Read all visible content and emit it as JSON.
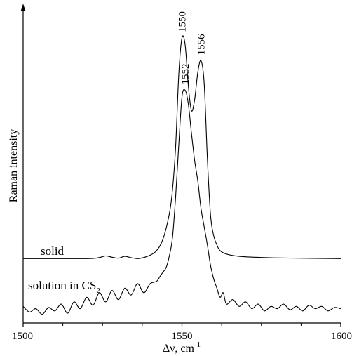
{
  "chart_data": {
    "type": "line",
    "title": "",
    "xlabel": "Δν, cm",
    "xlabel_sup": "-1",
    "ylabel": "Raman intensity",
    "xlim": [
      1500,
      1600
    ],
    "x_ticks": [
      1500,
      1550,
      1600
    ],
    "y_ticks_labeled": false,
    "grid": false,
    "legend": "none (series labelled directly on plot)",
    "series": [
      {
        "name": "solid",
        "color": "#000000",
        "points": [
          [
            1500,
            0.03
          ],
          [
            1520,
            0.03
          ],
          [
            1524,
            0.035
          ],
          [
            1526,
            0.042
          ],
          [
            1528,
            0.036
          ],
          [
            1530,
            0.032
          ],
          [
            1532,
            0.04
          ],
          [
            1534,
            0.034
          ],
          [
            1536,
            0.03
          ],
          [
            1538,
            0.035
          ],
          [
            1540,
            0.045
          ],
          [
            1542,
            0.065
          ],
          [
            1544,
            0.115
          ],
          [
            1546,
            0.225
          ],
          [
            1547,
            0.33
          ],
          [
            1548,
            0.52
          ],
          [
            1549,
            0.84
          ],
          [
            1550,
            1.0
          ],
          [
            1551,
            0.97
          ],
          [
            1552,
            0.79
          ],
          [
            1553,
            0.68
          ],
          [
            1554,
            0.73
          ],
          [
            1555,
            0.85
          ],
          [
            1556,
            0.9
          ],
          [
            1557,
            0.8
          ],
          [
            1558,
            0.47
          ],
          [
            1559,
            0.22
          ],
          [
            1560,
            0.13
          ],
          [
            1561,
            0.09
          ],
          [
            1562,
            0.065
          ],
          [
            1564,
            0.05
          ],
          [
            1568,
            0.04
          ],
          [
            1575,
            0.035
          ],
          [
            1585,
            0.032
          ],
          [
            1600,
            0.03
          ]
        ]
      },
      {
        "name": "solution in CS",
        "name_sub": "2",
        "color": "#000000",
        "points": [
          [
            1500,
            -0.18
          ],
          [
            1502,
            -0.205
          ],
          [
            1504,
            -0.19
          ],
          [
            1506,
            -0.215
          ],
          [
            1508,
            -0.185
          ],
          [
            1510,
            -0.2
          ],
          [
            1512,
            -0.17
          ],
          [
            1514,
            -0.21
          ],
          [
            1516,
            -0.16
          ],
          [
            1518,
            -0.19
          ],
          [
            1520,
            -0.14
          ],
          [
            1522,
            -0.175
          ],
          [
            1524,
            -0.12
          ],
          [
            1526,
            -0.16
          ],
          [
            1528,
            -0.11
          ],
          [
            1530,
            -0.15
          ],
          [
            1532,
            -0.1
          ],
          [
            1534,
            -0.13
          ],
          [
            1536,
            -0.08
          ],
          [
            1538,
            -0.12
          ],
          [
            1540,
            -0.08
          ],
          [
            1542,
            -0.07
          ],
          [
            1543,
            -0.05
          ],
          [
            1544,
            -0.03
          ],
          [
            1545,
            -0.01
          ],
          [
            1546,
            0.04
          ],
          [
            1547,
            0.12
          ],
          [
            1548,
            0.3
          ],
          [
            1549,
            0.53
          ],
          [
            1550,
            0.74
          ],
          [
            1551,
            0.77
          ],
          [
            1552,
            0.71
          ],
          [
            1553,
            0.58
          ],
          [
            1554,
            0.46
          ],
          [
            1555,
            0.37
          ],
          [
            1556,
            0.25
          ],
          [
            1557,
            0.17
          ],
          [
            1558,
            0.09
          ],
          [
            1559,
            0.0
          ],
          [
            1560,
            -0.06
          ],
          [
            1561,
            -0.1
          ],
          [
            1562,
            -0.14
          ],
          [
            1563,
            -0.12
          ],
          [
            1564,
            -0.17
          ],
          [
            1566,
            -0.15
          ],
          [
            1568,
            -0.18
          ],
          [
            1570,
            -0.16
          ],
          [
            1572,
            -0.19
          ],
          [
            1574,
            -0.17
          ],
          [
            1576,
            -0.2
          ],
          [
            1578,
            -0.18
          ],
          [
            1580,
            -0.19
          ],
          [
            1582,
            -0.17
          ],
          [
            1584,
            -0.195
          ],
          [
            1586,
            -0.18
          ],
          [
            1588,
            -0.2
          ],
          [
            1590,
            -0.175
          ],
          [
            1592,
            -0.19
          ],
          [
            1594,
            -0.18
          ],
          [
            1596,
            -0.2
          ],
          [
            1598,
            -0.185
          ],
          [
            1600,
            -0.19
          ]
        ]
      }
    ],
    "annotations": [
      {
        "text": "1550",
        "x": 1550,
        "y": 1.0
      },
      {
        "text": "1556",
        "x": 1556,
        "y": 0.9
      },
      {
        "text": "1552",
        "x": 1551,
        "y": 0.77
      }
    ]
  }
}
